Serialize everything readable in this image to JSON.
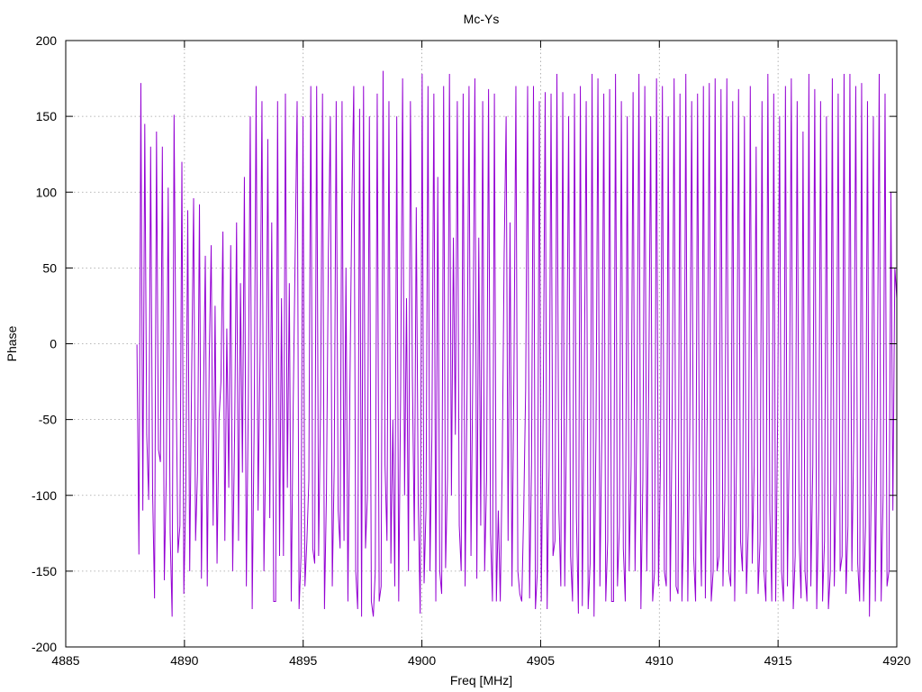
{
  "chart_data": {
    "type": "line",
    "title": "Mc-Ys",
    "xlabel": "Freq [MHz]",
    "ylabel": "Phase",
    "xlim": [
      4885,
      4920
    ],
    "ylim": [
      -200,
      200
    ],
    "x_ticks": [
      4885,
      4890,
      4895,
      4900,
      4905,
      4910,
      4915,
      4920
    ],
    "y_ticks": [
      -200,
      -150,
      -100,
      -50,
      0,
      50,
      100,
      150,
      200
    ],
    "grid": true,
    "legend": "none",
    "series": [
      {
        "color": "#9400d3",
        "x_start": 4888.0,
        "x_end": 4920.0,
        "values": [
          -0.5,
          -139,
          172,
          -110,
          145,
          -60,
          -103,
          130,
          -97,
          -168,
          140,
          -70,
          -78,
          130,
          -156,
          -88,
          103,
          -125,
          -180,
          151,
          -22,
          -138,
          -120,
          120,
          -165,
          -100,
          88,
          -150,
          -20,
          96,
          -130,
          -85,
          92,
          -155,
          -40,
          58,
          -160,
          -10,
          65,
          -120,
          25,
          -145,
          -50,
          -25,
          74,
          -130,
          10,
          -95,
          65,
          -150,
          -60,
          80,
          -130,
          40,
          -85,
          110,
          -160,
          -40,
          150,
          -175,
          -55,
          170,
          -110,
          -10,
          160,
          -150,
          -65,
          135,
          -115,
          80,
          -170,
          -170,
          160,
          -140,
          30,
          -140,
          165,
          -95,
          40,
          -170,
          -40,
          60,
          160,
          -175,
          -140,
          150,
          -160,
          -130,
          -90,
          170,
          -135,
          -145,
          170,
          -140,
          -40,
          165,
          -175,
          -100,
          60,
          150,
          -160,
          -80,
          160,
          -110,
          -135,
          160,
          -130,
          50,
          -170,
          -30,
          90,
          170,
          -150,
          -175,
          155,
          -180,
          170,
          -135,
          -100,
          150,
          -170,
          -180,
          -150,
          165,
          -170,
          -160,
          180,
          -80,
          -130,
          160,
          -145,
          -50,
          -160,
          150,
          -170,
          -30,
          175,
          -100,
          30,
          -150,
          160,
          -20,
          -130,
          90,
          -105,
          -178,
          178,
          -158,
          -108,
          170,
          -150,
          -60,
          165,
          -170,
          110,
          -150,
          -165,
          170,
          -148,
          -88,
          178,
          -100,
          70,
          -60,
          160,
          -120,
          -150,
          165,
          -160,
          -30,
          170,
          -140,
          -10,
          175,
          -155,
          70,
          -120,
          160,
          -150,
          -90,
          168,
          -125,
          -170,
          165,
          -170,
          -110,
          -170,
          -80,
          60,
          150,
          -130,
          80,
          -160,
          -20,
          170,
          -150,
          -165,
          -170,
          -110,
          -30,
          170,
          -168,
          -80,
          170,
          -175,
          -150,
          160,
          -170,
          -40,
          166,
          -175,
          -80,
          165,
          -140,
          -130,
          178,
          -110,
          -160,
          166,
          -160,
          -40,
          150,
          -140,
          -170,
          165,
          -115,
          -178,
          170,
          -173,
          -30,
          160,
          -175,
          -145,
          178,
          -180,
          -60,
          175,
          -160,
          -60,
          165,
          -170,
          -130,
          168,
          -170,
          -170,
          178,
          -160,
          -120,
          160,
          -135,
          -170,
          150,
          -150,
          -80,
          166,
          -150,
          -40,
          178,
          -175,
          -90,
          170,
          -150,
          -30,
          150,
          -170,
          -150,
          175,
          -160,
          -80,
          170,
          -150,
          -160,
          150,
          -170,
          -50,
          175,
          -160,
          -165,
          165,
          -170,
          -110,
          178,
          -170,
          -60,
          160,
          -140,
          -170,
          165,
          -100,
          -160,
          170,
          -168,
          -40,
          172,
          -170,
          -150,
          175,
          -150,
          -140,
          168,
          -160,
          -100,
          175,
          -150,
          -160,
          160,
          -170,
          -70,
          168,
          -130,
          -150,
          150,
          -165,
          -120,
          170,
          -145,
          -80,
          130,
          -165,
          -130,
          160,
          -150,
          -170,
          178,
          -110,
          -170,
          165,
          -170,
          -50,
          150,
          -150,
          -170,
          170,
          -160,
          -60,
          175,
          -175,
          -140,
          160,
          -130,
          -168,
          140,
          -150,
          -170,
          178,
          -160,
          -80,
          168,
          -175,
          -110,
          160,
          -170,
          -130,
          150,
          -175,
          -150,
          175,
          -160,
          -90,
          165,
          -150,
          -140,
          178,
          -165,
          -120,
          178,
          -150,
          -60,
          170,
          -145,
          -170,
          172,
          -170,
          -120,
          160,
          -180,
          -90,
          150,
          -170,
          -40,
          178,
          -170,
          -100,
          165,
          -160,
          -150,
          100,
          -110,
          50,
          30
        ]
      }
    ]
  }
}
